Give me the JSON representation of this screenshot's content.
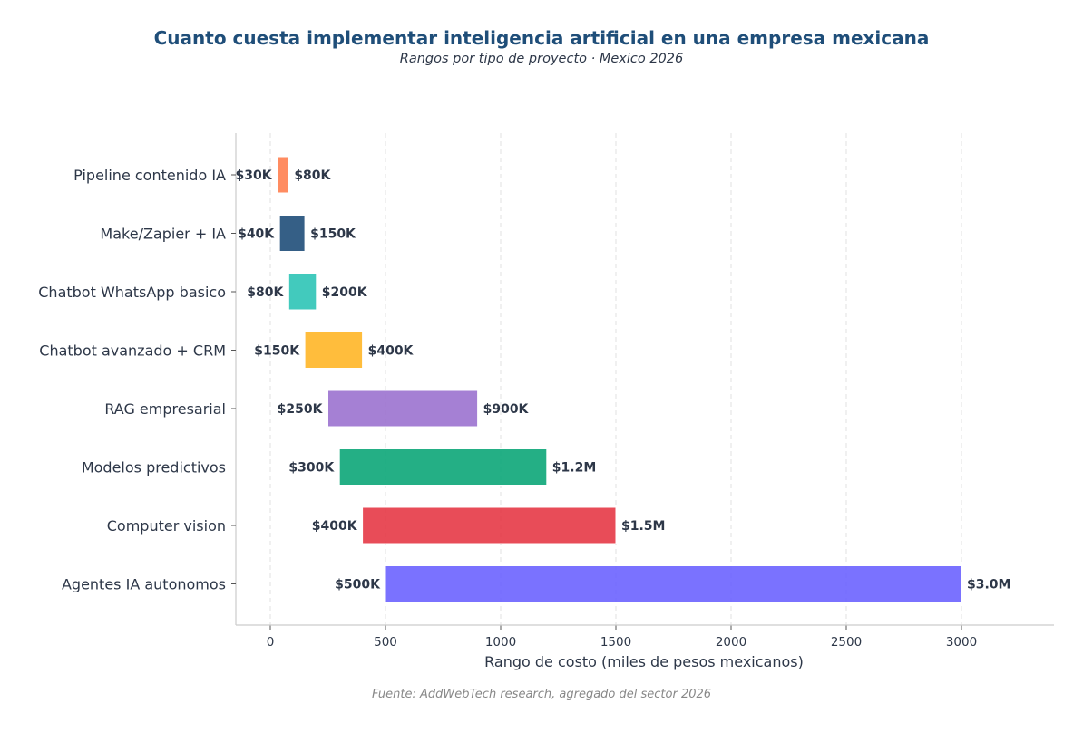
{
  "chart_data": {
    "type": "bar",
    "orientation": "horizontal",
    "title": "Cuanto cuesta implementar inteligencia artificial en una empresa mexicana",
    "subtitle": "Rangos por tipo de proyecto · Mexico 2026",
    "xlabel": "Rango de costo (miles de pesos mexicanos)",
    "ylabel": "",
    "source": "Fuente: AddWebTech research, agregado del sector 2026",
    "xlim": [
      -150,
      3400
    ],
    "xticks": [
      0,
      500,
      1000,
      1500,
      2000,
      2500,
      3000
    ],
    "grid": "x-dashed",
    "categories": [
      "Pipeline contenido IA",
      "Make/Zapier + IA",
      "Chatbot WhatsApp basico",
      "Chatbot avanzado + CRM",
      "RAG empresarial",
      "Modelos predictivos",
      "Computer vision",
      "Agentes IA autonomos"
    ],
    "min": [
      30,
      40,
      80,
      150,
      250,
      300,
      400,
      500
    ],
    "max": [
      80,
      150,
      200,
      400,
      900,
      1200,
      1500,
      3000
    ],
    "min_labels": [
      "$30K",
      "$40K",
      "$80K",
      "$150K",
      "$250K",
      "$300K",
      "$400K",
      "$500K"
    ],
    "max_labels": [
      "$80K",
      "$150K",
      "$200K",
      "$400K",
      "$900K",
      "$1.2M",
      "$1.5M",
      "$3.0M"
    ],
    "colors": [
      "#ff7f50",
      "#1f4e79",
      "#2ec4b6",
      "#ffb627",
      "#9b72cf",
      "#0ca678",
      "#e63946",
      "#6c63ff"
    ]
  }
}
